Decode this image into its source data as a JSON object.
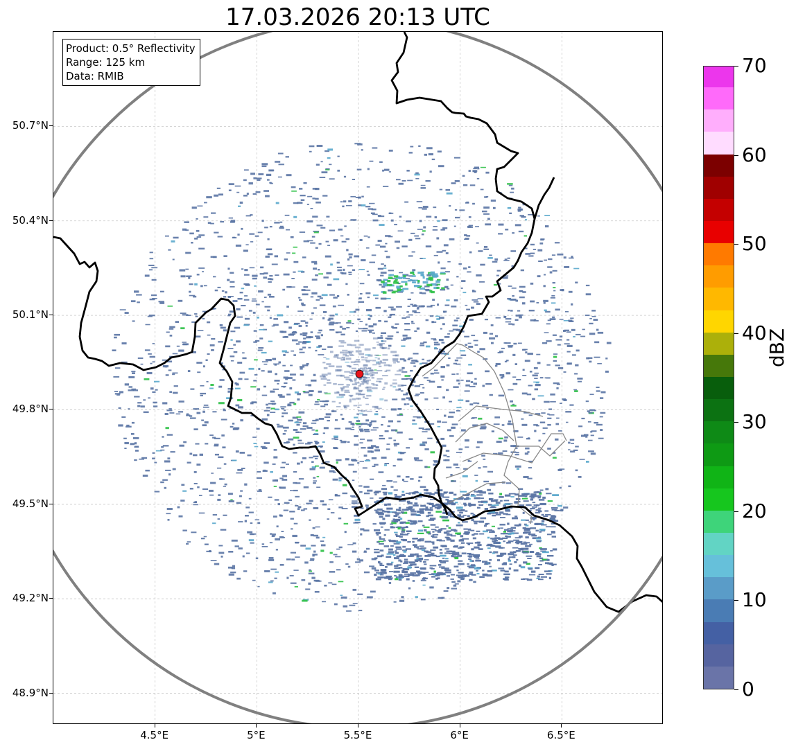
{
  "title": "17.03.2026 20:13 UTC",
  "info_box": {
    "product": "Product: 0.5° Reflectivity",
    "range": "Range: 125 km",
    "source": "Data: RMIB"
  },
  "axes": {
    "x_ticks": [
      {
        "value": 4.5,
        "label": "4.5°E"
      },
      {
        "value": 5.0,
        "label": "5°E"
      },
      {
        "value": 5.5,
        "label": "5.5°E"
      },
      {
        "value": 6.0,
        "label": "6°E"
      },
      {
        "value": 6.5,
        "label": "6.5°E"
      }
    ],
    "y_ticks": [
      {
        "value": 50.7,
        "label": "50.7°N"
      },
      {
        "value": 50.4,
        "label": "50.4°N"
      },
      {
        "value": 50.1,
        "label": "50.1°N"
      },
      {
        "value": 49.8,
        "label": "49.8°N"
      },
      {
        "value": 49.5,
        "label": "49.5°N"
      },
      {
        "value": 49.2,
        "label": "49.2°N"
      },
      {
        "value": 48.9,
        "label": "48.9°N"
      }
    ],
    "lon_range": [
      4.0,
      7.0
    ],
    "lat_range": [
      48.8,
      51.0
    ]
  },
  "radar": {
    "site_lon": 5.505,
    "site_lat": 49.914,
    "range_km": 125,
    "site_color": "#e8141b",
    "ring_color": "#808080"
  },
  "colorbar": {
    "unit": "dBZ",
    "min": 0,
    "max": 70,
    "step": 2.5,
    "tick_labels": [
      "0",
      "10",
      "20",
      "30",
      "40",
      "50",
      "60",
      "70"
    ],
    "colors": [
      "#6a74a8",
      "#5664a0",
      "#4460a4",
      "#4a7cb4",
      "#5a9cc8",
      "#66c0da",
      "#62d4c4",
      "#3ed47a",
      "#16c61e",
      "#10b416",
      "#0e9a14",
      "#0e8a16",
      "#0c7212",
      "#085e0c",
      "#46780a",
      "#acb00a",
      "#ffd600",
      "#ffb800",
      "#ff9c00",
      "#ff7a00",
      "#e80000",
      "#c40000",
      "#a00000",
      "#7c0000",
      "#ffdcff",
      "#ffaefc",
      "#ff6afa",
      "#ec36ec"
    ]
  },
  "map_colors": {
    "border": "#000000",
    "admin": "#888888",
    "grid": "#c8c8c8",
    "echo_weak": "#5a74a4",
    "echo_mid": "#5aa8cc",
    "echo_strong": "#2cc046"
  }
}
